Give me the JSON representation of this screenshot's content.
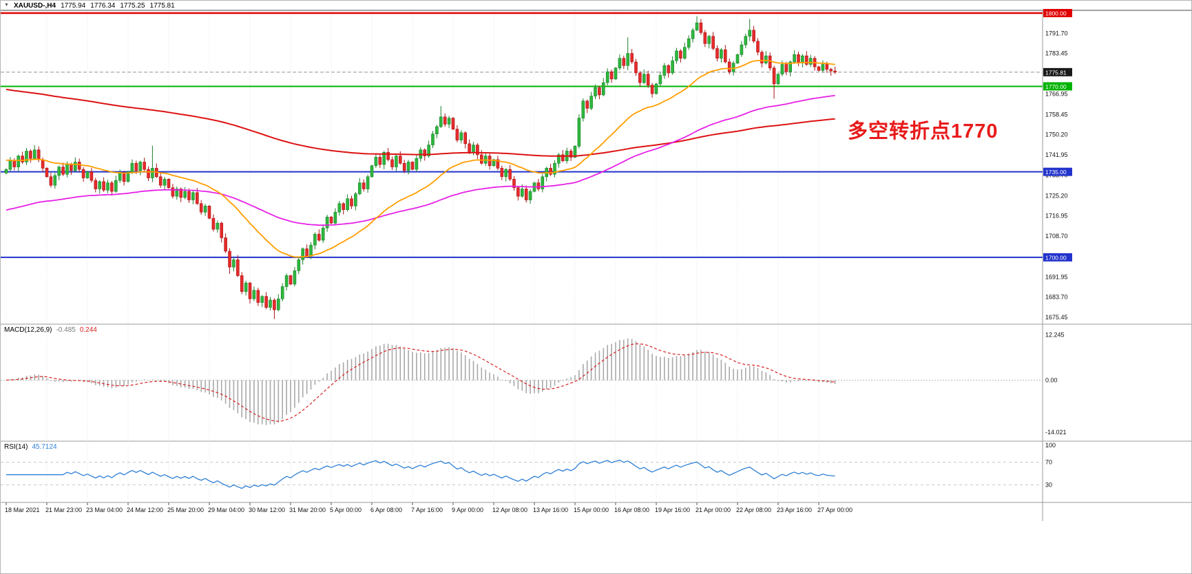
{
  "title_bar": {
    "symbol_period": "XAUUSD-,H4",
    "open": "1775.94",
    "high": "1776.34",
    "low": "1775.25",
    "close": "1775.81"
  },
  "annotation": {
    "text": "多空转折点1770",
    "color": "#e81a1a"
  },
  "indicators": {
    "macd": {
      "label": "MACD(12,26,9)",
      "main_value": "-0.485",
      "signal_value": "0.244",
      "ticks": [
        {
          "v": 12.245,
          "label": "12.245"
        },
        {
          "v": 0,
          "label": "0.00"
        },
        {
          "v": -14.021,
          "label": "-14.021"
        }
      ],
      "hist_color": "#a8a8a8",
      "signal_color": "#d81f1f"
    },
    "rsi": {
      "label": "RSI(14)",
      "value": "45.7124",
      "levels": [
        {
          "v": 100,
          "label": "100",
          "line": false
        },
        {
          "v": 70,
          "label": "70",
          "line": true
        },
        {
          "v": 30,
          "label": "30",
          "line": true
        }
      ],
      "color": "#2e7fd6"
    }
  },
  "chart_data": {
    "type": "candlestick",
    "symbol": "XAUUSD-",
    "timeframe": "H4",
    "price_axis_visible_range": [
      1675.45,
      1800.0
    ],
    "first_open": 1734.5,
    "closes": [
      1736.0,
      1739.5,
      1737.0,
      1741.5,
      1739.0,
      1743.5,
      1740.5,
      1744.0,
      1740.0,
      1736.5,
      1733.0,
      1729.5,
      1733.5,
      1737.0,
      1734.0,
      1738.0,
      1735.5,
      1739.0,
      1736.0,
      1732.5,
      1735.0,
      1731.5,
      1728.0,
      1731.0,
      1727.5,
      1730.5,
      1727.0,
      1731.5,
      1734.5,
      1731.0,
      1735.0,
      1738.5,
      1735.5,
      1739.0,
      1736.0,
      1732.5,
      1736.5,
      1733.0,
      1729.5,
      1732.0,
      1728.5,
      1725.0,
      1728.0,
      1724.5,
      1727.0,
      1723.5,
      1726.5,
      1722.0,
      1718.5,
      1721.0,
      1716.0,
      1711.5,
      1714.0,
      1708.0,
      1702.5,
      1696.0,
      1699.0,
      1692.5,
      1686.0,
      1689.5,
      1683.0,
      1686.5,
      1681.5,
      1684.0,
      1679.5,
      1682.5,
      1678.5,
      1683.0,
      1688.0,
      1692.5,
      1689.0,
      1694.5,
      1699.0,
      1703.5,
      1700.5,
      1705.0,
      1709.5,
      1707.0,
      1712.0,
      1716.5,
      1714.0,
      1718.5,
      1722.0,
      1719.5,
      1724.0,
      1721.0,
      1726.0,
      1730.5,
      1728.0,
      1733.0,
      1737.5,
      1741.0,
      1738.0,
      1743.0,
      1740.0,
      1737.0,
      1741.5,
      1738.5,
      1735.5,
      1739.0,
      1736.0,
      1740.5,
      1744.0,
      1741.5,
      1746.0,
      1750.5,
      1753.5,
      1757.5,
      1754.5,
      1757.0,
      1752.5,
      1748.0,
      1751.0,
      1746.5,
      1743.0,
      1746.0,
      1742.0,
      1738.5,
      1741.5,
      1737.5,
      1740.0,
      1736.5,
      1733.0,
      1736.0,
      1732.0,
      1728.5,
      1725.0,
      1728.0,
      1723.5,
      1727.0,
      1730.5,
      1728.0,
      1733.0,
      1736.5,
      1734.0,
      1738.5,
      1742.0,
      1739.5,
      1743.5,
      1741.0,
      1745.5,
      1757.0,
      1764.0,
      1761.0,
      1766.0,
      1769.5,
      1766.5,
      1771.5,
      1776.0,
      1773.0,
      1777.5,
      1781.5,
      1778.5,
      1783.5,
      1780.0,
      1775.5,
      1771.5,
      1775.0,
      1770.5,
      1767.0,
      1771.0,
      1774.5,
      1778.5,
      1775.5,
      1780.5,
      1784.5,
      1781.5,
      1786.0,
      1789.5,
      1793.0,
      1796.0,
      1792.0,
      1787.5,
      1790.5,
      1785.5,
      1781.5,
      1785.0,
      1780.0,
      1776.0,
      1779.5,
      1783.0,
      1787.0,
      1790.5,
      1793.0,
      1788.5,
      1784.0,
      1779.5,
      1782.5,
      1777.5,
      1771.0,
      1775.0,
      1779.0,
      1776.0,
      1780.0,
      1783.0,
      1779.5,
      1782.5,
      1779.0,
      1781.5,
      1778.0,
      1776.5,
      1779.0,
      1777.0,
      1776.3,
      1775.81
    ],
    "wick_overrides": {
      "36": [
        8.5,
        0
      ],
      "55": [
        0,
        1.5
      ],
      "60": [
        0,
        1.5
      ],
      "66": [
        0,
        2.0
      ],
      "107": [
        2.5,
        0
      ],
      "153": [
        6.0,
        0
      ],
      "170": [
        2.3,
        0
      ],
      "183": [
        4.0,
        0
      ],
      "189": [
        0,
        4.5
      ]
    },
    "bars_per_label": 10,
    "x_labels": [
      "18 Mar 2021",
      "21 Mar 23:00",
      "23 Mar 04:00",
      "24 Mar 12:00",
      "25 Mar 20:00",
      "29 Mar 04:00",
      "30 Mar 12:00",
      "31 Mar 20:00",
      "5 Apr 00:00",
      "6 Apr 08:00",
      "7 Apr 16:00",
      "9 Apr 00:00",
      "12 Apr 08:00",
      "13 Apr 16:00",
      "15 Apr 00:00",
      "16 Apr 08:00",
      "19 Apr 16:00",
      "21 Apr 00:00",
      "22 Apr 08:00",
      "23 Apr 16:00",
      "27 Apr 00:00"
    ],
    "y_ticks": [
      {
        "v": 1791.7,
        "label": "1791.70"
      },
      {
        "v": 1783.45,
        "label": "1783.45"
      },
      {
        "v": 1766.95,
        "label": "1766.95"
      },
      {
        "v": 1758.45,
        "label": "1758.45"
      },
      {
        "v": 1750.2,
        "label": "1750.20"
      },
      {
        "v": 1741.95,
        "label": "1741.95"
      },
      {
        "v": 1733.7,
        "label": "1733.70"
      },
      {
        "v": 1725.2,
        "label": "1725.20"
      },
      {
        "v": 1716.95,
        "label": "1716.95"
      },
      {
        "v": 1708.7,
        "label": "1708.70"
      },
      {
        "v": 1691.95,
        "label": "1691.95"
      },
      {
        "v": 1683.7,
        "label": "1683.70"
      },
      {
        "v": 1675.45,
        "label": "1675.45"
      }
    ],
    "price_lines": [
      {
        "price": 1800.0,
        "label": "1800.00",
        "color": "#e00000",
        "width": 2.4,
        "style": "solid",
        "name": "resistance-line-1800"
      },
      {
        "price": 1775.81,
        "label": "1775.81",
        "color": "#909090",
        "width": 1,
        "style": "dash",
        "badge": "#1a1a1a",
        "name": "current-price-line"
      },
      {
        "price": 1770.0,
        "label": "1770.00",
        "color": "#00b300",
        "width": 2,
        "style": "solid",
        "name": "pivot-line-1770"
      },
      {
        "price": 1735.0,
        "label": "1735.00",
        "color": "#2233cc",
        "width": 2,
        "style": "solid",
        "name": "support-line-1735"
      },
      {
        "price": 1700.0,
        "label": "1700.00",
        "color": "#2233cc",
        "width": 2,
        "style": "solid",
        "name": "support-line-1700"
      }
    ],
    "moving_averages": [
      {
        "name": "ma-slow-red",
        "color": "#dd1111",
        "alpha": 0.008,
        "seed": 1769,
        "width": 2.0
      },
      {
        "name": "ma-mid-magenta",
        "color": "#e620e6",
        "alpha": 0.02,
        "seed": 1719,
        "width": 1.8
      },
      {
        "name": "ma-fast-orange",
        "color": "#ff9d00",
        "alpha": 0.06,
        "seed": 1740,
        "width": 1.8
      }
    ],
    "candle_colors": {
      "up_fill": "#2db83d",
      "up_stroke": "#1d7f2a",
      "down_fill": "#e62b2b",
      "down_stroke": "#a81414"
    }
  }
}
